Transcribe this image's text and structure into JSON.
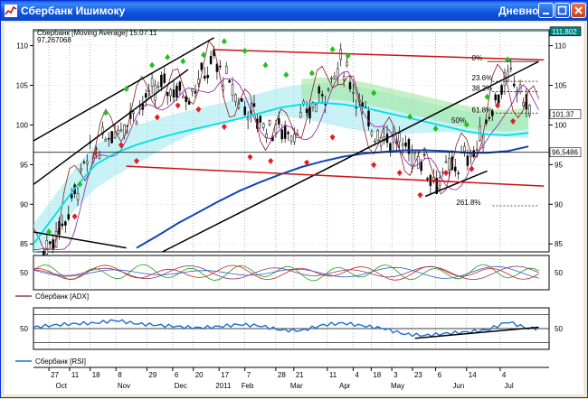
{
  "window": {
    "title": "Сбербанк Ишимоку",
    "right_label": "Дневной",
    "colors": {
      "title_bar": "#0a54dc",
      "title_text": "#ffffff"
    }
  },
  "chart_data": [
    {
      "type": "line",
      "panel": "price",
      "header": "Сбербанк [Moving Average] 15.07.11",
      "subheader": "97,267068",
      "ylim": [
        84,
        112
      ],
      "yticks": [
        85,
        90,
        95,
        100,
        105,
        110
      ],
      "ytick_labels": [
        "85",
        "90",
        "95",
        "100",
        "105",
        "110"
      ],
      "grid": "vertical dotted",
      "price_tags": [
        {
          "label": "111,802",
          "value": 111.8,
          "color": "#008080"
        },
        {
          "label": "101,37",
          "value": 101.37,
          "color": "#ffffff"
        },
        {
          "label": "96,5486",
          "value": 96.55,
          "color": "#ffffff"
        }
      ],
      "fib_levels": [
        {
          "label": "0%",
          "value": 108.0
        },
        {
          "label": "23.6%",
          "value": 105.5
        },
        {
          "label": "38.2%",
          "value": 104.2
        },
        {
          "label": "61.8%",
          "value": 101.5
        },
        {
          "label": "261.8%",
          "value": 89.8
        }
      ],
      "annotations": [
        "50%"
      ],
      "series": [
        {
          "role": "moving-average-fast",
          "color": "#00e0e0",
          "x": [
            0,
            8,
            16,
            24,
            32,
            40,
            48,
            56,
            64,
            72,
            80,
            88,
            96,
            104,
            112,
            120,
            128,
            136,
            144,
            152,
            160,
            168,
            176,
            184,
            192
          ],
          "values": [
            85,
            88.5,
            92,
            95,
            96.5,
            97.5,
            98.3,
            99,
            99.6,
            100.2,
            100.8,
            101.5,
            102.2,
            102.6,
            102.8,
            102.6,
            102.2,
            101.6,
            101,
            100.4,
            99.8,
            99.2,
            98.8,
            98.7,
            99
          ]
        },
        {
          "role": "moving-average-slow",
          "color": "#1144bb",
          "x": [
            40,
            48,
            56,
            64,
            72,
            80,
            88,
            96,
            104,
            112,
            120,
            128,
            136,
            144,
            152,
            160,
            168,
            176,
            184,
            192
          ],
          "values": [
            84.5,
            86,
            87.6,
            89,
            90.4,
            91.7,
            92.8,
            93.8,
            94.7,
            95.4,
            96,
            96.4,
            96.6,
            96.8,
            96.8,
            96.7,
            96.5,
            96.5,
            96.7,
            97.3
          ]
        }
      ],
      "trend_lines": [
        {
          "color": "#000000",
          "from": [
            0,
            98
          ],
          "to": [
            70,
            111
          ]
        },
        {
          "color": "#000000",
          "from": [
            0,
            92.5
          ],
          "to": [
            60,
            107
          ]
        },
        {
          "color": "#000000",
          "from": [
            50,
            84
          ],
          "to": [
            196,
            108
          ]
        },
        {
          "color": "#000000",
          "from": [
            0,
            86.5
          ],
          "to": [
            36,
            84.5
          ]
        },
        {
          "color": "#000000",
          "from": [
            152,
            91
          ],
          "to": [
            176,
            94.2
          ]
        },
        {
          "color": "#cc1111",
          "from": [
            70,
            109.5
          ],
          "to": [
            198,
            108.2
          ]
        },
        {
          "color": "#cc1111",
          "from": [
            36,
            94.8
          ],
          "to": [
            198,
            92.3
          ]
        }
      ],
      "horizontal_levels": [
        {
          "color": "#000000",
          "value": 96.55
        },
        {
          "color": "#008080",
          "value": 111.8
        }
      ]
    },
    {
      "type": "line",
      "panel": "indicator",
      "legend": "Сбербанк [ADX]",
      "ylim": [
        0,
        100
      ],
      "yticks": [
        50
      ],
      "ytick_labels": [
        "50"
      ]
    },
    {
      "type": "line",
      "panel": "indicator",
      "legend": "Сбербанк [RSI]",
      "ylim": [
        20,
        80
      ],
      "yticks": [
        50
      ],
      "ytick_labels": [
        "50"
      ],
      "series": [
        {
          "role": "rsi",
          "color": "#1a6fd0",
          "x": [
            0,
            8,
            16,
            24,
            32,
            40,
            48,
            56,
            64,
            72,
            80,
            88,
            96,
            104,
            112,
            120,
            128,
            136,
            144,
            152,
            160,
            168,
            176,
            184,
            192
          ],
          "values": [
            52,
            55,
            57,
            58,
            62,
            57,
            55,
            53,
            51,
            53,
            56,
            54,
            48,
            47,
            55,
            58,
            54,
            50,
            42,
            40,
            43,
            45,
            48,
            60,
            50
          ]
        }
      ],
      "trend_lines": [
        {
          "color": "#000000",
          "from": [
            148,
            36
          ],
          "to": [
            196,
            52
          ]
        }
      ]
    }
  ],
  "x_axis": {
    "day_labels": [
      {
        "x": 6,
        "text": "27"
      },
      {
        "x": 14,
        "text": "11"
      },
      {
        "x": 22,
        "text": "18"
      },
      {
        "x": 32,
        "text": "8"
      },
      {
        "x": 44,
        "text": "29"
      },
      {
        "x": 54,
        "text": "6"
      },
      {
        "x": 62,
        "text": "20"
      },
      {
        "x": 72,
        "text": "17"
      },
      {
        "x": 82,
        "text": "7"
      },
      {
        "x": 94,
        "text": "28"
      },
      {
        "x": 101,
        "text": "21"
      },
      {
        "x": 114,
        "text": "11"
      },
      {
        "x": 124,
        "text": "4"
      },
      {
        "x": 131,
        "text": "18"
      },
      {
        "x": 139,
        "text": "3"
      },
      {
        "x": 147,
        "text": "23"
      },
      {
        "x": 156,
        "text": "6"
      },
      {
        "x": 168,
        "text": "14"
      },
      {
        "x": 181,
        "text": "4"
      }
    ],
    "month_labels": [
      {
        "x": 10,
        "text": "Oct"
      },
      {
        "x": 34,
        "text": "Nov"
      },
      {
        "x": 56,
        "text": "Dec"
      },
      {
        "x": 72,
        "text": "2011"
      },
      {
        "x": 82,
        "text": "Feb"
      },
      {
        "x": 101,
        "text": "Mar"
      },
      {
        "x": 120,
        "text": "Apr"
      },
      {
        "x": 140,
        "text": "May"
      },
      {
        "x": 164,
        "text": "Jun"
      },
      {
        "x": 184,
        "text": "Jul"
      }
    ]
  }
}
